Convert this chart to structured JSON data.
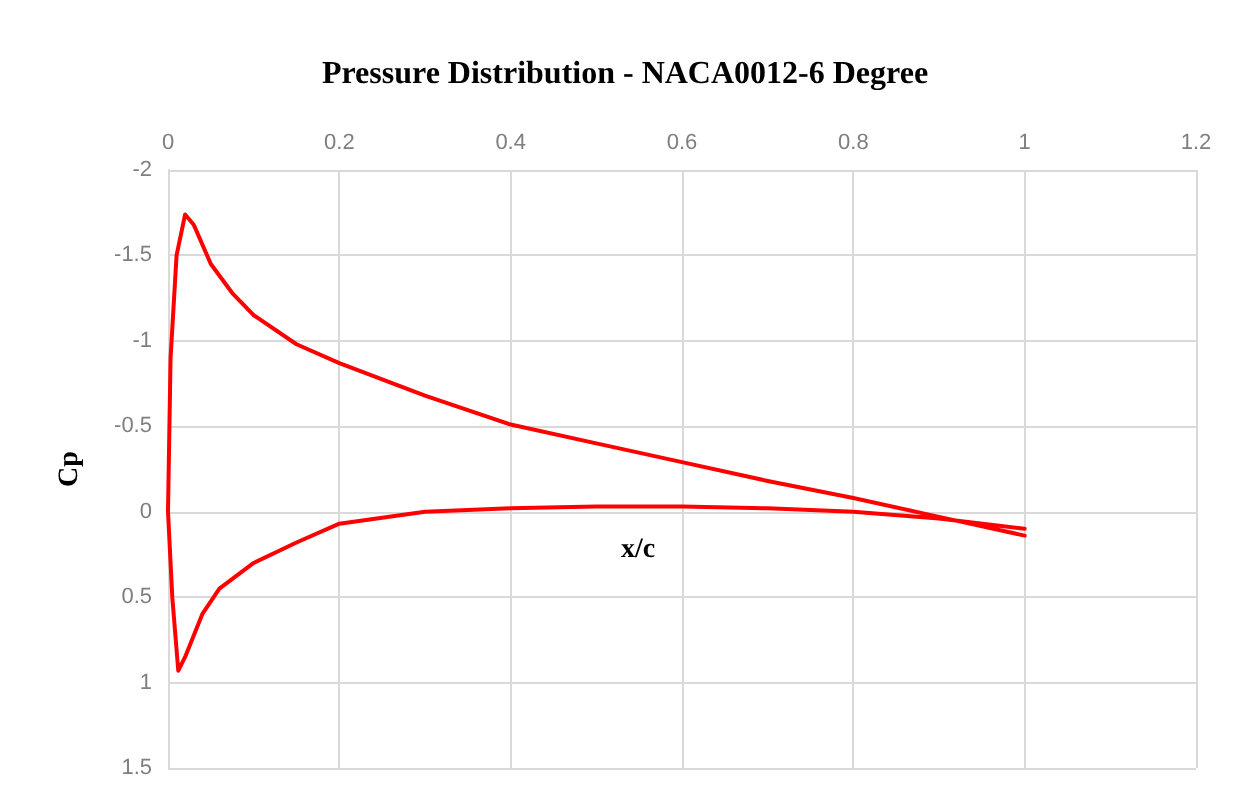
{
  "chart_data": {
    "type": "line",
    "title": "Pressure Distribution - NACA0012-6 Degree",
    "xlabel": "x/c",
    "ylabel": "Cp",
    "xlim": [
      0,
      1.2
    ],
    "xticks": [
      0,
      0.2,
      0.4,
      0.6,
      0.8,
      1,
      1.2
    ],
    "ylim": [
      1.5,
      -2
    ],
    "yticks": [
      -2,
      -1.5,
      -1,
      -0.5,
      0,
      0.5,
      1,
      1.5
    ],
    "grid": true,
    "marker": "none",
    "line_style": "solid",
    "series": [
      {
        "color": "#ff0000",
        "x": [
          1,
          0.9,
          0.8,
          0.7,
          0.6,
          0.5,
          0.4,
          0.3,
          0.2,
          0.15,
          0.1,
          0.06,
          0.04,
          0.02,
          0.012,
          0.005,
          0,
          0.003,
          0.01,
          0.02,
          0.03,
          0.05,
          0.075,
          0.1,
          0.15,
          0.2,
          0.3,
          0.4,
          0.5,
          0.6,
          0.7,
          0.8,
          0.9,
          1
        ],
        "values": [
          0.1,
          0.04,
          0,
          -0.02,
          -0.03,
          -0.03,
          -0.02,
          0,
          0.07,
          0.18,
          0.3,
          0.45,
          0.6,
          0.85,
          0.93,
          0.5,
          0,
          -0.9,
          -1.5,
          -1.74,
          -1.68,
          -1.45,
          -1.28,
          -1.15,
          -0.98,
          -0.87,
          -0.68,
          -0.51,
          -0.4,
          -0.29,
          -0.18,
          -0.08,
          0.03,
          0.14
        ]
      }
    ]
  }
}
